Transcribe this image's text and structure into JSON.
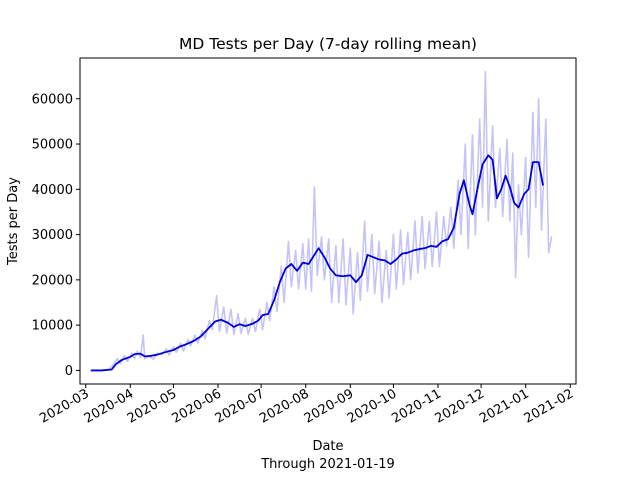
{
  "chart_data": {
    "type": "line",
    "title": "MD Tests per Day (7-day rolling mean)",
    "xlabel": "Date",
    "xsublabel": "Through 2021-01-19",
    "ylabel": "Tests per Day",
    "x_range": [
      "2020-02-26",
      "2021-02-05"
    ],
    "ylim": [
      -3000,
      69000
    ],
    "y_ticks": [
      0,
      10000,
      20000,
      30000,
      40000,
      50000,
      60000
    ],
    "x_ticks": [
      "2020-03",
      "2020-04",
      "2020-05",
      "2020-06",
      "2020-07",
      "2020-08",
      "2020-09",
      "2020-10",
      "2020-11",
      "2020-12",
      "2021-01",
      "2021-02"
    ],
    "x_tick_dates": [
      "2020-03-01",
      "2020-04-01",
      "2020-05-01",
      "2020-06-01",
      "2020-07-01",
      "2020-08-01",
      "2020-09-01",
      "2020-10-01",
      "2020-11-01",
      "2020-12-01",
      "2021-01-01",
      "2021-02-01"
    ],
    "grid": false,
    "series": [
      {
        "color": "#c4c4f6",
        "width": 1.6,
        "points": [
          [
            "2020-03-05",
            0
          ],
          [
            "2020-03-12",
            0
          ],
          [
            "2020-03-17",
            200
          ],
          [
            "2020-03-20",
            1200
          ],
          [
            "2020-03-23",
            2600
          ],
          [
            "2020-03-25",
            1500
          ],
          [
            "2020-03-28",
            3300
          ],
          [
            "2020-03-30",
            2000
          ],
          [
            "2020-04-02",
            3800
          ],
          [
            "2020-04-04",
            2600
          ],
          [
            "2020-04-06",
            4200
          ],
          [
            "2020-04-08",
            2800
          ],
          [
            "2020-04-10",
            7800
          ],
          [
            "2020-04-11",
            2600
          ],
          [
            "2020-04-14",
            3200
          ],
          [
            "2020-04-17",
            2500
          ],
          [
            "2020-04-20",
            3800
          ],
          [
            "2020-04-23",
            3500
          ],
          [
            "2020-04-26",
            4800
          ],
          [
            "2020-04-28",
            3400
          ],
          [
            "2020-05-01",
            5200
          ],
          [
            "2020-05-03",
            4000
          ],
          [
            "2020-05-06",
            6000
          ],
          [
            "2020-05-08",
            4300
          ],
          [
            "2020-05-11",
            6800
          ],
          [
            "2020-05-13",
            5400
          ],
          [
            "2020-05-16",
            7800
          ],
          [
            "2020-05-18",
            6000
          ],
          [
            "2020-05-21",
            8800
          ],
          [
            "2020-05-23",
            7000
          ],
          [
            "2020-05-26",
            11000
          ],
          [
            "2020-05-28",
            9000
          ],
          [
            "2020-05-31",
            16500
          ],
          [
            "2020-06-02",
            8600
          ],
          [
            "2020-06-05",
            14000
          ],
          [
            "2020-06-07",
            8200
          ],
          [
            "2020-06-10",
            13500
          ],
          [
            "2020-06-12",
            8000
          ],
          [
            "2020-06-15",
            12500
          ],
          [
            "2020-06-17",
            8200
          ],
          [
            "2020-06-20",
            11500
          ],
          [
            "2020-06-22",
            8000
          ],
          [
            "2020-06-25",
            11500
          ],
          [
            "2020-06-27",
            8600
          ],
          [
            "2020-06-30",
            13500
          ],
          [
            "2020-07-02",
            9000
          ],
          [
            "2020-07-05",
            15000
          ],
          [
            "2020-07-07",
            11000
          ],
          [
            "2020-07-10",
            18500
          ],
          [
            "2020-07-12",
            13000
          ],
          [
            "2020-07-15",
            23000
          ],
          [
            "2020-07-17",
            15000
          ],
          [
            "2020-07-20",
            28500
          ],
          [
            "2020-07-22",
            18500
          ],
          [
            "2020-07-25",
            26500
          ],
          [
            "2020-07-27",
            18000
          ],
          [
            "2020-07-30",
            28000
          ],
          [
            "2020-08-01",
            18000
          ],
          [
            "2020-08-03",
            29000
          ],
          [
            "2020-08-05",
            17500
          ],
          [
            "2020-08-07",
            40500
          ],
          [
            "2020-08-09",
            21000
          ],
          [
            "2020-08-12",
            29500
          ],
          [
            "2020-08-14",
            20000
          ],
          [
            "2020-08-17",
            29000
          ],
          [
            "2020-08-19",
            15000
          ],
          [
            "2020-08-22",
            27500
          ],
          [
            "2020-08-24",
            15000
          ],
          [
            "2020-08-27",
            29000
          ],
          [
            "2020-08-29",
            14500
          ],
          [
            "2020-09-01",
            27000
          ],
          [
            "2020-09-03",
            12500
          ],
          [
            "2020-09-06",
            26000
          ],
          [
            "2020-09-08",
            15500
          ],
          [
            "2020-09-11",
            33000
          ],
          [
            "2020-09-13",
            17500
          ],
          [
            "2020-09-16",
            30000
          ],
          [
            "2020-09-18",
            17000
          ],
          [
            "2020-09-21",
            28500
          ],
          [
            "2020-09-23",
            15000
          ],
          [
            "2020-09-26",
            26500
          ],
          [
            "2020-09-28",
            16000
          ],
          [
            "2020-10-01",
            30000
          ],
          [
            "2020-10-03",
            18000
          ],
          [
            "2020-10-06",
            31000
          ],
          [
            "2020-10-08",
            19000
          ],
          [
            "2020-10-11",
            30500
          ],
          [
            "2020-10-13",
            20000
          ],
          [
            "2020-10-16",
            33000
          ],
          [
            "2020-10-18",
            21500
          ],
          [
            "2020-10-21",
            34000
          ],
          [
            "2020-10-23",
            22500
          ],
          [
            "2020-10-26",
            33000
          ],
          [
            "2020-10-28",
            23000
          ],
          [
            "2020-10-31",
            35000
          ],
          [
            "2020-11-02",
            23000
          ],
          [
            "2020-11-05",
            34000
          ],
          [
            "2020-11-07",
            27500
          ],
          [
            "2020-11-10",
            36000
          ],
          [
            "2020-11-12",
            27000
          ],
          [
            "2020-11-15",
            42000
          ],
          [
            "2020-11-17",
            30000
          ],
          [
            "2020-11-20",
            50000
          ],
          [
            "2020-11-22",
            27000
          ],
          [
            "2020-11-25",
            52000
          ],
          [
            "2020-11-27",
            30000
          ],
          [
            "2020-11-30",
            55500
          ],
          [
            "2020-12-02",
            36000
          ],
          [
            "2020-12-04",
            66000
          ],
          [
            "2020-12-06",
            33000
          ],
          [
            "2020-12-09",
            54000
          ],
          [
            "2020-12-11",
            36000
          ],
          [
            "2020-12-14",
            49000
          ],
          [
            "2020-12-16",
            34000
          ],
          [
            "2020-12-19",
            51000
          ],
          [
            "2020-12-21",
            33000
          ],
          [
            "2020-12-23",
            48000
          ],
          [
            "2020-12-25",
            20500
          ],
          [
            "2020-12-27",
            41000
          ],
          [
            "2020-12-29",
            30000
          ],
          [
            "2021-01-01",
            47000
          ],
          [
            "2021-01-03",
            25000
          ],
          [
            "2021-01-06",
            57000
          ],
          [
            "2021-01-08",
            36000
          ],
          [
            "2021-01-10",
            60000
          ],
          [
            "2021-01-12",
            31000
          ],
          [
            "2021-01-15",
            55500
          ],
          [
            "2021-01-17",
            26000
          ],
          [
            "2021-01-19",
            29500
          ]
        ]
      },
      {
        "color": "#0000dc",
        "width": 1.8,
        "points": [
          [
            "2020-03-05",
            0
          ],
          [
            "2020-03-12",
            0
          ],
          [
            "2020-03-19",
            200
          ],
          [
            "2020-03-22",
            1400
          ],
          [
            "2020-03-26",
            2300
          ],
          [
            "2020-04-01",
            3000
          ],
          [
            "2020-04-04",
            3600
          ],
          [
            "2020-04-08",
            3700
          ],
          [
            "2020-04-11",
            3100
          ],
          [
            "2020-04-15",
            3200
          ],
          [
            "2020-04-20",
            3500
          ],
          [
            "2020-04-25",
            4000
          ],
          [
            "2020-05-01",
            4500
          ],
          [
            "2020-05-05",
            5200
          ],
          [
            "2020-05-10",
            5800
          ],
          [
            "2020-05-15",
            6500
          ],
          [
            "2020-05-20",
            7500
          ],
          [
            "2020-05-26",
            9500
          ],
          [
            "2020-05-30",
            10800
          ],
          [
            "2020-06-03",
            11200
          ],
          [
            "2020-06-08",
            10500
          ],
          [
            "2020-06-12",
            9600
          ],
          [
            "2020-06-16",
            10200
          ],
          [
            "2020-06-20",
            9800
          ],
          [
            "2020-06-25",
            10300
          ],
          [
            "2020-06-29",
            11000
          ],
          [
            "2020-07-02",
            12200
          ],
          [
            "2020-07-06",
            12500
          ],
          [
            "2020-07-10",
            15500
          ],
          [
            "2020-07-14",
            19500
          ],
          [
            "2020-07-18",
            22500
          ],
          [
            "2020-07-22",
            23500
          ],
          [
            "2020-07-26",
            22000
          ],
          [
            "2020-07-30",
            23800
          ],
          [
            "2020-08-03",
            23500
          ],
          [
            "2020-08-07",
            25500
          ],
          [
            "2020-08-10",
            27000
          ],
          [
            "2020-08-14",
            25000
          ],
          [
            "2020-08-18",
            22500
          ],
          [
            "2020-08-22",
            21000
          ],
          [
            "2020-08-27",
            20800
          ],
          [
            "2020-09-01",
            21000
          ],
          [
            "2020-09-05",
            19500
          ],
          [
            "2020-09-09",
            21000
          ],
          [
            "2020-09-13",
            25500
          ],
          [
            "2020-09-17",
            25000
          ],
          [
            "2020-09-21",
            24500
          ],
          [
            "2020-09-25",
            24300
          ],
          [
            "2020-09-29",
            23500
          ],
          [
            "2020-10-03",
            24500
          ],
          [
            "2020-10-07",
            25800
          ],
          [
            "2020-10-11",
            26000
          ],
          [
            "2020-10-15",
            26500
          ],
          [
            "2020-10-19",
            26800
          ],
          [
            "2020-10-23",
            27000
          ],
          [
            "2020-10-27",
            27500
          ],
          [
            "2020-10-31",
            27300
          ],
          [
            "2020-11-04",
            28500
          ],
          [
            "2020-11-08",
            29000
          ],
          [
            "2020-11-12",
            31500
          ],
          [
            "2020-11-16",
            39000
          ],
          [
            "2020-11-19",
            42000
          ],
          [
            "2020-11-23",
            36500
          ],
          [
            "2020-11-25",
            34500
          ],
          [
            "2020-11-29",
            41000
          ],
          [
            "2020-12-02",
            45500
          ],
          [
            "2020-12-06",
            47500
          ],
          [
            "2020-12-09",
            46500
          ],
          [
            "2020-12-12",
            38000
          ],
          [
            "2020-12-15",
            40000
          ],
          [
            "2020-12-18",
            43000
          ],
          [
            "2020-12-21",
            40500
          ],
          [
            "2020-12-24",
            37000
          ],
          [
            "2020-12-27",
            36000
          ],
          [
            "2020-12-31",
            39000
          ],
          [
            "2021-01-03",
            40000
          ],
          [
            "2021-01-06",
            46000
          ],
          [
            "2021-01-10",
            46000
          ],
          [
            "2021-01-13",
            41000
          ]
        ]
      }
    ]
  }
}
